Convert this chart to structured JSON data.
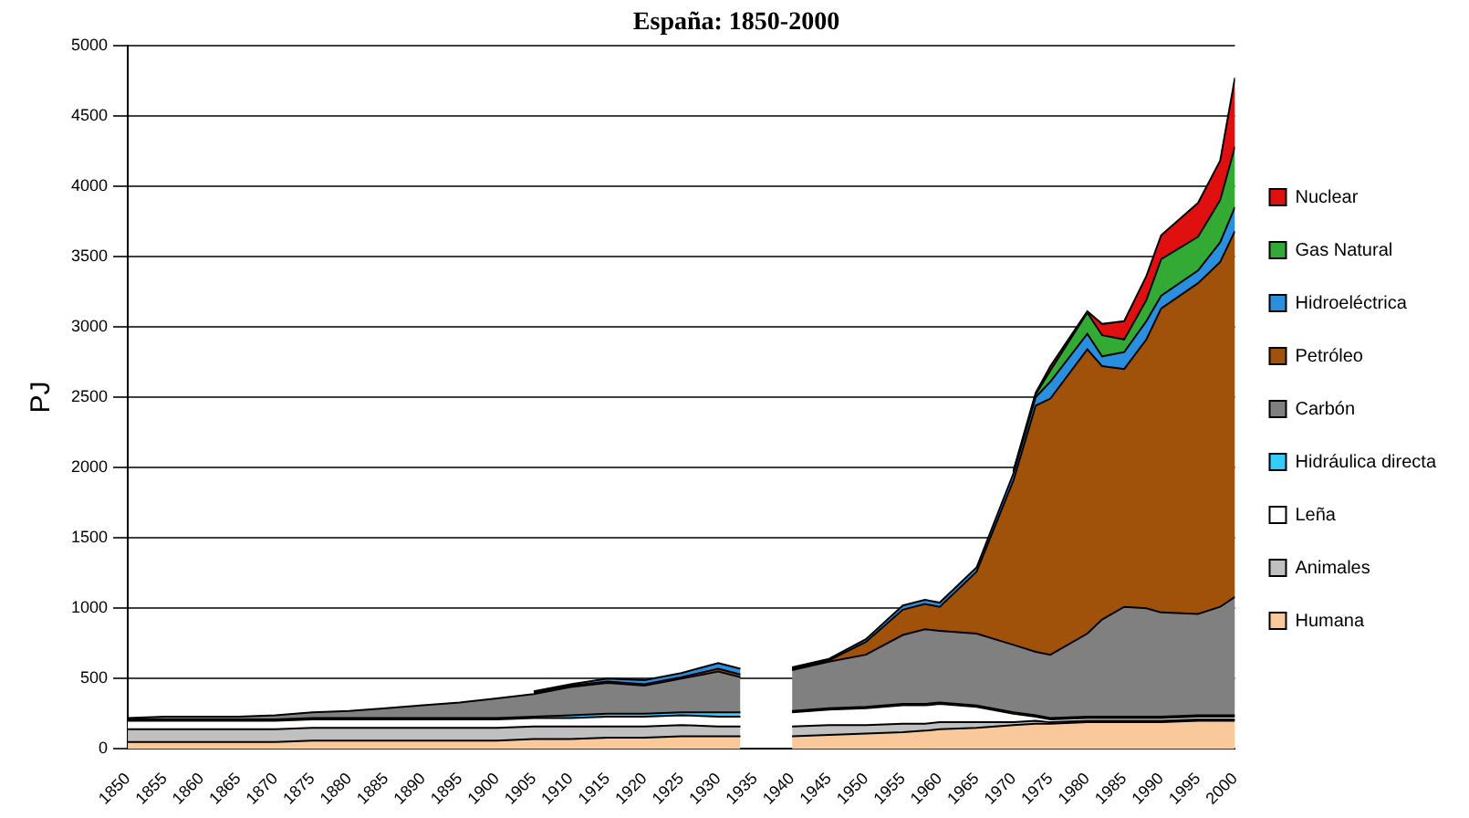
{
  "chart_data": {
    "type": "area",
    "stacked": true,
    "title": "España: 1850-2000",
    "ylabel": "PJ",
    "x": [
      1850,
      1855,
      1860,
      1865,
      1870,
      1875,
      1880,
      1885,
      1890,
      1895,
      1900,
      1905,
      1910,
      1915,
      1920,
      1925,
      1930,
      1933,
      1936,
      1940,
      1945,
      1950,
      1955,
      1958,
      1960,
      1965,
      1970,
      1973,
      1975,
      1980,
      1982,
      1985,
      1988,
      1990,
      1995,
      1998,
      2000
    ],
    "xlim": [
      1850,
      2000
    ],
    "xticks": [
      1850,
      1855,
      1860,
      1865,
      1870,
      1875,
      1880,
      1885,
      1890,
      1895,
      1900,
      1905,
      1910,
      1915,
      1920,
      1925,
      1930,
      1935,
      1940,
      1945,
      1950,
      1955,
      1960,
      1965,
      1970,
      1975,
      1980,
      1985,
      1990,
      1995,
      2000
    ],
    "ylim": [
      0,
      5000
    ],
    "yticks": [
      0,
      500,
      1000,
      1500,
      2000,
      2500,
      3000,
      3500,
      4000,
      4500,
      5000
    ],
    "grid": "y",
    "legend": "right",
    "series": [
      {
        "name": "Humana",
        "color": "#f9c99b",
        "values": [
          50,
          50,
          50,
          50,
          50,
          60,
          60,
          60,
          60,
          60,
          60,
          70,
          70,
          80,
          80,
          90,
          90,
          90,
          null,
          90,
          100,
          110,
          120,
          130,
          140,
          150,
          170,
          180,
          180,
          190,
          190,
          190,
          190,
          190,
          200,
          200,
          200
        ]
      },
      {
        "name": "Animales",
        "color": "#c0c0c0",
        "values": [
          90,
          90,
          90,
          90,
          90,
          90,
          90,
          90,
          90,
          90,
          90,
          90,
          90,
          80,
          80,
          80,
          70,
          70,
          null,
          70,
          70,
          60,
          60,
          50,
          50,
          40,
          20,
          20,
          10,
          10,
          10,
          10,
          10,
          10,
          10,
          10,
          10
        ]
      },
      {
        "name": "Leña",
        "color": "#ffffff",
        "values": [
          60,
          60,
          60,
          60,
          60,
          60,
          60,
          60,
          60,
          60,
          60,
          60,
          60,
          70,
          70,
          70,
          70,
          70,
          null,
          100,
          110,
          120,
          130,
          130,
          130,
          110,
          60,
          30,
          20,
          20,
          20,
          20,
          20,
          20,
          20,
          20,
          20
        ]
      },
      {
        "name": "Hidráulica directa",
        "color": "#33ccff",
        "values": [
          10,
          10,
          10,
          10,
          10,
          10,
          10,
          10,
          10,
          10,
          10,
          10,
          20,
          20,
          20,
          20,
          30,
          30,
          null,
          10,
          10,
          10,
          10,
          10,
          10,
          10,
          10,
          10,
          10,
          10,
          10,
          10,
          10,
          10,
          10,
          10,
          10
        ]
      },
      {
        "name": "Carbón",
        "color": "#808080",
        "values": [
          10,
          20,
          20,
          20,
          30,
          40,
          50,
          70,
          90,
          110,
          140,
          160,
          200,
          220,
          200,
          240,
          290,
          250,
          null,
          290,
          330,
          370,
          490,
          530,
          510,
          510,
          480,
          450,
          450,
          590,
          690,
          780,
          770,
          740,
          720,
          770,
          840
        ]
      },
      {
        "name": "Petróleo",
        "color": "#a0520a",
        "values": [
          null,
          null,
          null,
          null,
          null,
          null,
          null,
          null,
          null,
          null,
          null,
          10,
          10,
          10,
          10,
          10,
          20,
          20,
          null,
          10,
          10,
          90,
          180,
          180,
          170,
          440,
          1170,
          1750,
          1820,
          2020,
          1800,
          1690,
          1910,
          2160,
          2350,
          2450,
          2600
        ]
      },
      {
        "name": "Hidroeléctrica",
        "color": "#2b8fe0",
        "values": [
          null,
          null,
          null,
          null,
          null,
          null,
          null,
          null,
          null,
          null,
          null,
          10,
          10,
          20,
          30,
          30,
          40,
          40,
          null,
          10,
          10,
          20,
          30,
          30,
          30,
          30,
          50,
          60,
          120,
          110,
          70,
          120,
          130,
          90,
          90,
          140,
          170
        ]
      },
      {
        "name": "Gas Natural",
        "color": "#33aa33",
        "values": [
          null,
          null,
          null,
          null,
          null,
          null,
          null,
          null,
          null,
          null,
          null,
          null,
          null,
          null,
          null,
          null,
          null,
          null,
          null,
          null,
          null,
          null,
          null,
          null,
          null,
          null,
          10,
          20,
          80,
          150,
          150,
          90,
          150,
          260,
          240,
          300,
          430
        ]
      },
      {
        "name": "Nuclear",
        "color": "#e01010",
        "values": [
          null,
          null,
          null,
          null,
          null,
          null,
          null,
          null,
          null,
          null,
          null,
          null,
          null,
          null,
          null,
          null,
          null,
          null,
          null,
          null,
          null,
          null,
          null,
          null,
          null,
          null,
          10,
          10,
          30,
          10,
          80,
          130,
          170,
          170,
          240,
          280,
          490
        ]
      }
    ]
  }
}
